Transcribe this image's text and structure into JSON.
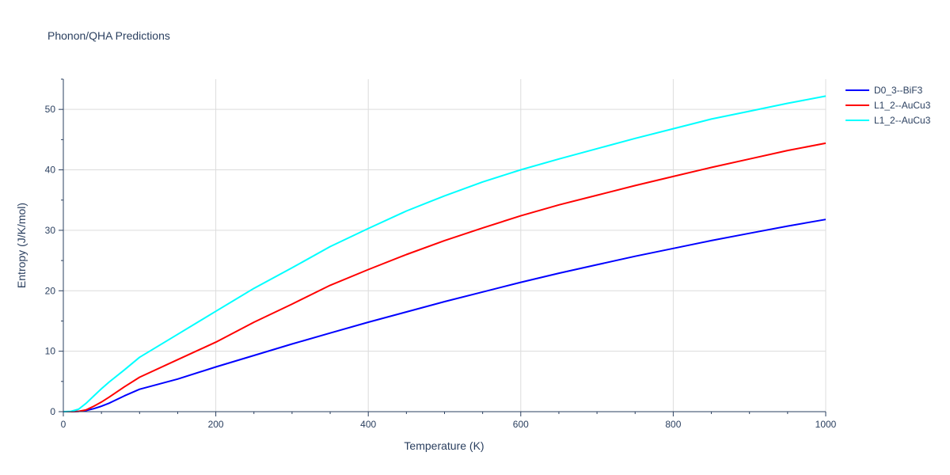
{
  "chart_data": {
    "type": "line",
    "title": "Phonon/QHA Predictions",
    "xlabel": "Temperature (K)",
    "ylabel": "Entropy (J/K/mol)",
    "xlim": [
      0,
      1000
    ],
    "ylim": [
      0,
      55
    ],
    "x_ticks": [
      0,
      200,
      400,
      600,
      800,
      1000
    ],
    "y_ticks": [
      0,
      10,
      20,
      30,
      40,
      50
    ],
    "grid": true,
    "legend_position": "top-right",
    "series": [
      {
        "name": "D0_3--BiF3",
        "color": "#0000ff",
        "x": [
          0,
          10,
          20,
          30,
          40,
          50,
          60,
          80,
          100,
          150,
          200,
          250,
          300,
          350,
          400,
          450,
          500,
          550,
          600,
          650,
          700,
          750,
          800,
          850,
          900,
          950,
          1000
        ],
        "y": [
          0,
          0,
          0.05,
          0.2,
          0.5,
          0.9,
          1.4,
          2.6,
          3.7,
          5.4,
          7.4,
          9.3,
          11.2,
          13.0,
          14.8,
          16.5,
          18.2,
          19.8,
          21.4,
          22.9,
          24.3,
          25.7,
          27.0,
          28.3,
          29.5,
          30.7,
          31.8
        ]
      },
      {
        "name": "L1_2--AuCu3",
        "color": "#ff0000",
        "x": [
          0,
          10,
          20,
          30,
          40,
          50,
          60,
          80,
          100,
          150,
          200,
          250,
          300,
          350,
          400,
          450,
          500,
          550,
          600,
          650,
          700,
          750,
          800,
          850,
          900,
          950,
          1000
        ],
        "y": [
          0,
          0,
          0.05,
          0.3,
          0.9,
          1.6,
          2.4,
          4.1,
          5.7,
          8.6,
          11.5,
          14.8,
          17.8,
          20.9,
          23.5,
          26.0,
          28.3,
          30.4,
          32.4,
          34.2,
          35.8,
          37.4,
          38.9,
          40.4,
          41.8,
          43.2,
          44.4
        ]
      },
      {
        "name": "L1_2--AuCu3",
        "color": "#00ffff",
        "x": [
          0,
          10,
          20,
          30,
          40,
          50,
          60,
          80,
          100,
          150,
          200,
          250,
          300,
          350,
          400,
          450,
          500,
          550,
          600,
          650,
          700,
          750,
          800,
          850,
          900,
          950,
          1000
        ],
        "y": [
          0,
          0.05,
          0.4,
          1.4,
          2.6,
          3.8,
          4.9,
          6.9,
          9.0,
          12.8,
          16.6,
          20.4,
          23.8,
          27.3,
          30.3,
          33.2,
          35.7,
          38.0,
          40.0,
          41.8,
          43.5,
          45.2,
          46.8,
          48.4,
          49.7,
          51.0,
          52.2
        ]
      }
    ]
  }
}
